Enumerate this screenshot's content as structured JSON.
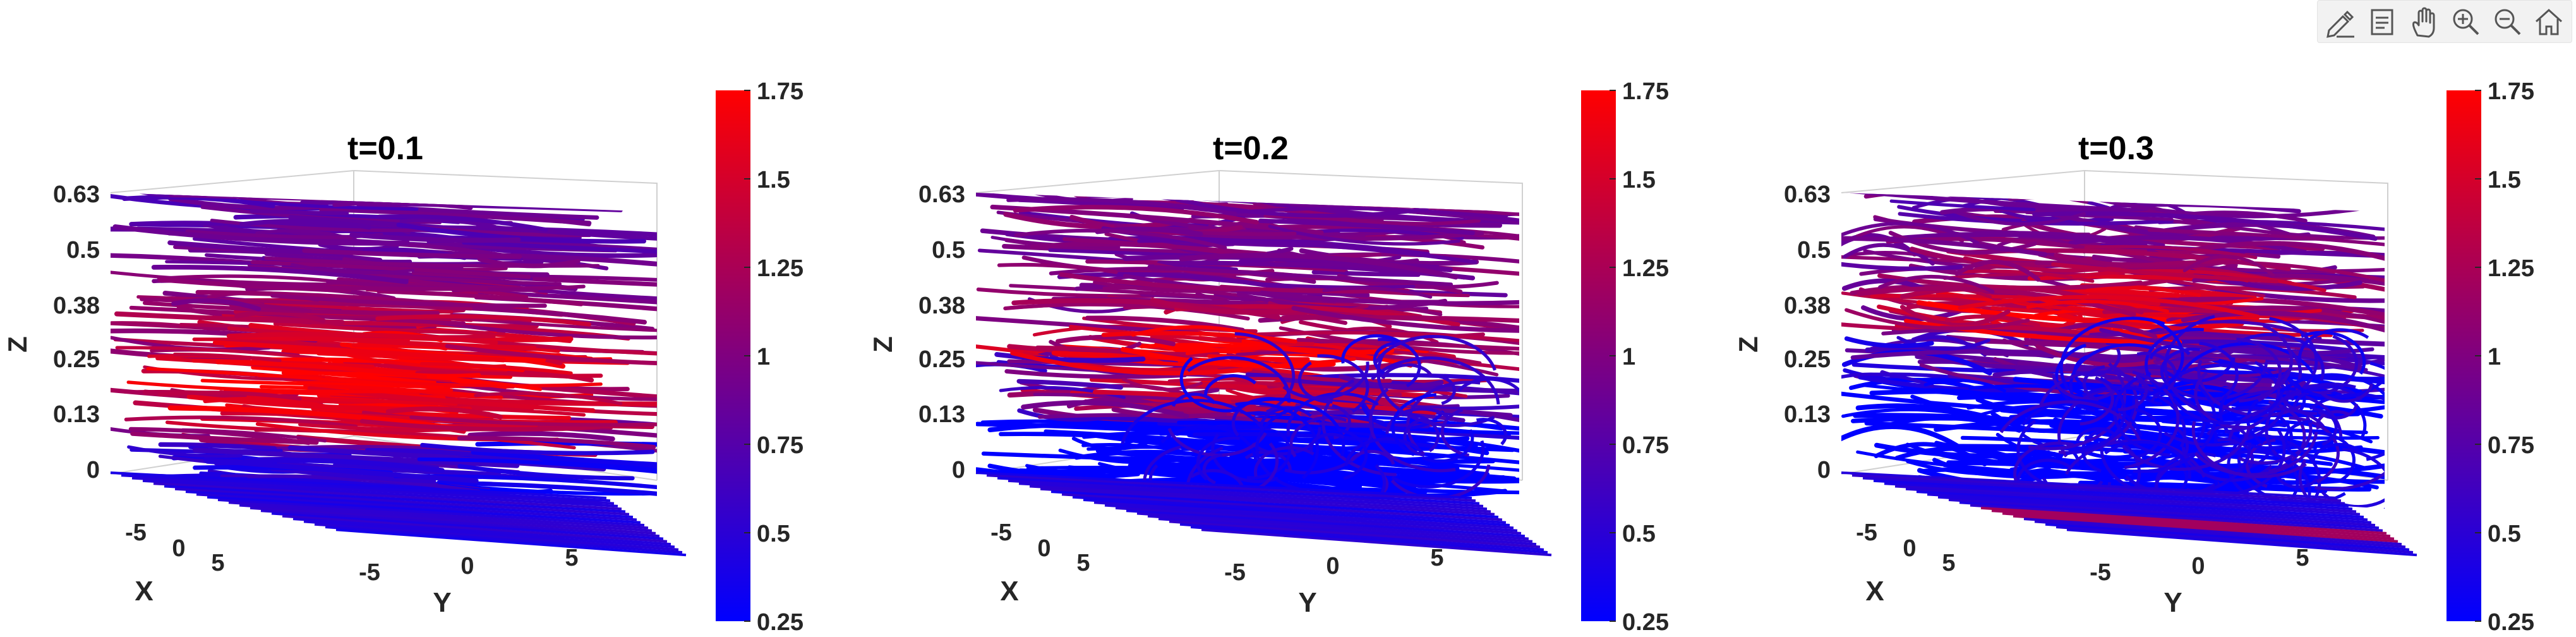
{
  "toolbar": {
    "items": [
      {
        "name": "edit-icon"
      },
      {
        "name": "data-tips-icon"
      },
      {
        "name": "pan-hand-icon"
      },
      {
        "name": "zoom-in-icon"
      },
      {
        "name": "zoom-out-icon"
      },
      {
        "name": "home-restore-view-icon"
      }
    ]
  },
  "colorbar": {
    "ticks": [
      "1.75",
      "1.5",
      "1.25",
      "1",
      "0.75",
      "0.5",
      "0.25"
    ],
    "range": [
      0.25,
      1.75
    ],
    "colormap": [
      "#0000ff",
      "#ff0000"
    ]
  },
  "chart_data": [
    {
      "type": "streamline-3d",
      "title": "t=0.1",
      "xlabel": "X",
      "ylabel": "Y",
      "zlabel": "Z",
      "zticks": [
        "0.63",
        "0.5",
        "0.38",
        "0.25",
        "0.13",
        "0"
      ],
      "xticks": [
        "-5",
        "0",
        "5"
      ],
      "yticks": [
        "-5",
        "0",
        "5"
      ],
      "zlim": [
        0,
        0.63
      ],
      "color_range": [
        0.25,
        1.75
      ],
      "max_color_region": "center, z≈0.13–0.25"
    },
    {
      "type": "streamline-3d",
      "title": "t=0.2",
      "xlabel": "X",
      "ylabel": "Y",
      "zlabel": "Z",
      "zticks": [
        "0.63",
        "0.5",
        "0.38",
        "0.25",
        "0.13",
        "0"
      ],
      "xticks": [
        "-5",
        "0",
        "5"
      ],
      "yticks": [
        "-5",
        "0",
        "5"
      ],
      "zlim": [
        0,
        0.63
      ],
      "color_range": [
        0.25,
        1.75
      ],
      "max_color_region": "center, z≈0.13–0.25"
    },
    {
      "type": "streamline-3d",
      "title": "t=0.3",
      "xlabel": "X",
      "ylabel": "Y",
      "zlabel": "Z",
      "zticks": [
        "0.63",
        "0.5",
        "0.38",
        "0.25",
        "0.13",
        "0"
      ],
      "xticks": [
        "-5",
        "0",
        "5"
      ],
      "yticks": [
        "-5",
        "0",
        "5"
      ],
      "zlim": [
        0,
        0.63
      ],
      "color_range": [
        0.25,
        1.75
      ],
      "max_color_region": "upper center, z≈0.38"
    }
  ]
}
